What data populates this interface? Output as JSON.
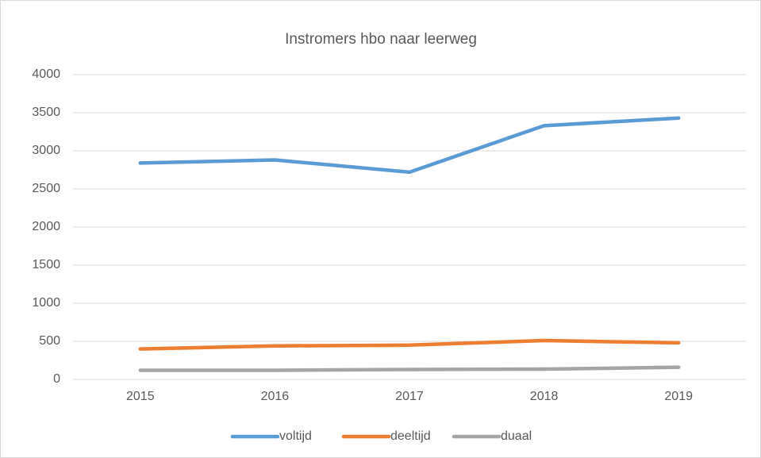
{
  "chart_data": {
    "type": "line",
    "title": "Instromers hbo naar leerweg",
    "categories": [
      "2015",
      "2016",
      "2017",
      "2018",
      "2019"
    ],
    "series": [
      {
        "name": "voltijd",
        "color": "#5b9bd5",
        "values": [
          2840,
          2880,
          2720,
          3330,
          3430
        ]
      },
      {
        "name": "deeltijd",
        "color": "#ed7d31",
        "values": [
          400,
          440,
          450,
          510,
          480
        ]
      },
      {
        "name": "duaal",
        "color": "#a5a5a5",
        "values": [
          120,
          120,
          130,
          135,
          160
        ]
      }
    ],
    "ylim": [
      0,
      4000
    ],
    "yticks": [
      0,
      500,
      1000,
      1500,
      2000,
      2500,
      3000,
      3500,
      4000
    ],
    "grid": true,
    "legend": "bottom"
  }
}
